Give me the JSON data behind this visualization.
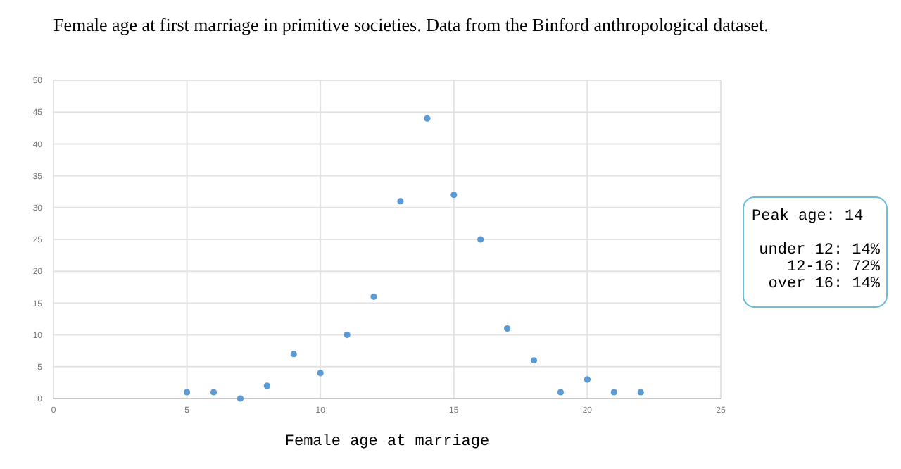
{
  "chart_data": {
    "type": "scatter",
    "title": "Female age at first marriage in primitive societies. Data from the Binford anthropological dataset.",
    "xlabel": "Female age at marriage",
    "x": [
      5,
      6,
      7,
      8,
      9,
      10,
      11,
      12,
      13,
      14,
      15,
      16,
      17,
      18,
      19,
      20,
      21,
      22
    ],
    "values": [
      1,
      1,
      0,
      2,
      7,
      4,
      10,
      16,
      31,
      44,
      32,
      25,
      11,
      6,
      1,
      3,
      1,
      1
    ],
    "color": "#5b9bd5",
    "marker": "circle",
    "xlim": [
      0,
      25
    ],
    "xticks": [
      0,
      5,
      10,
      15,
      20,
      25
    ],
    "ylim": [
      0,
      50
    ],
    "yticks": [
      0,
      5,
      10,
      15,
      20,
      25,
      30,
      35,
      40,
      45,
      50
    ],
    "grid": true,
    "annotations": [
      "Peak age: 14",
      "under 12: 14%",
      "12-16: 72%",
      "over 16: 14%"
    ]
  }
}
